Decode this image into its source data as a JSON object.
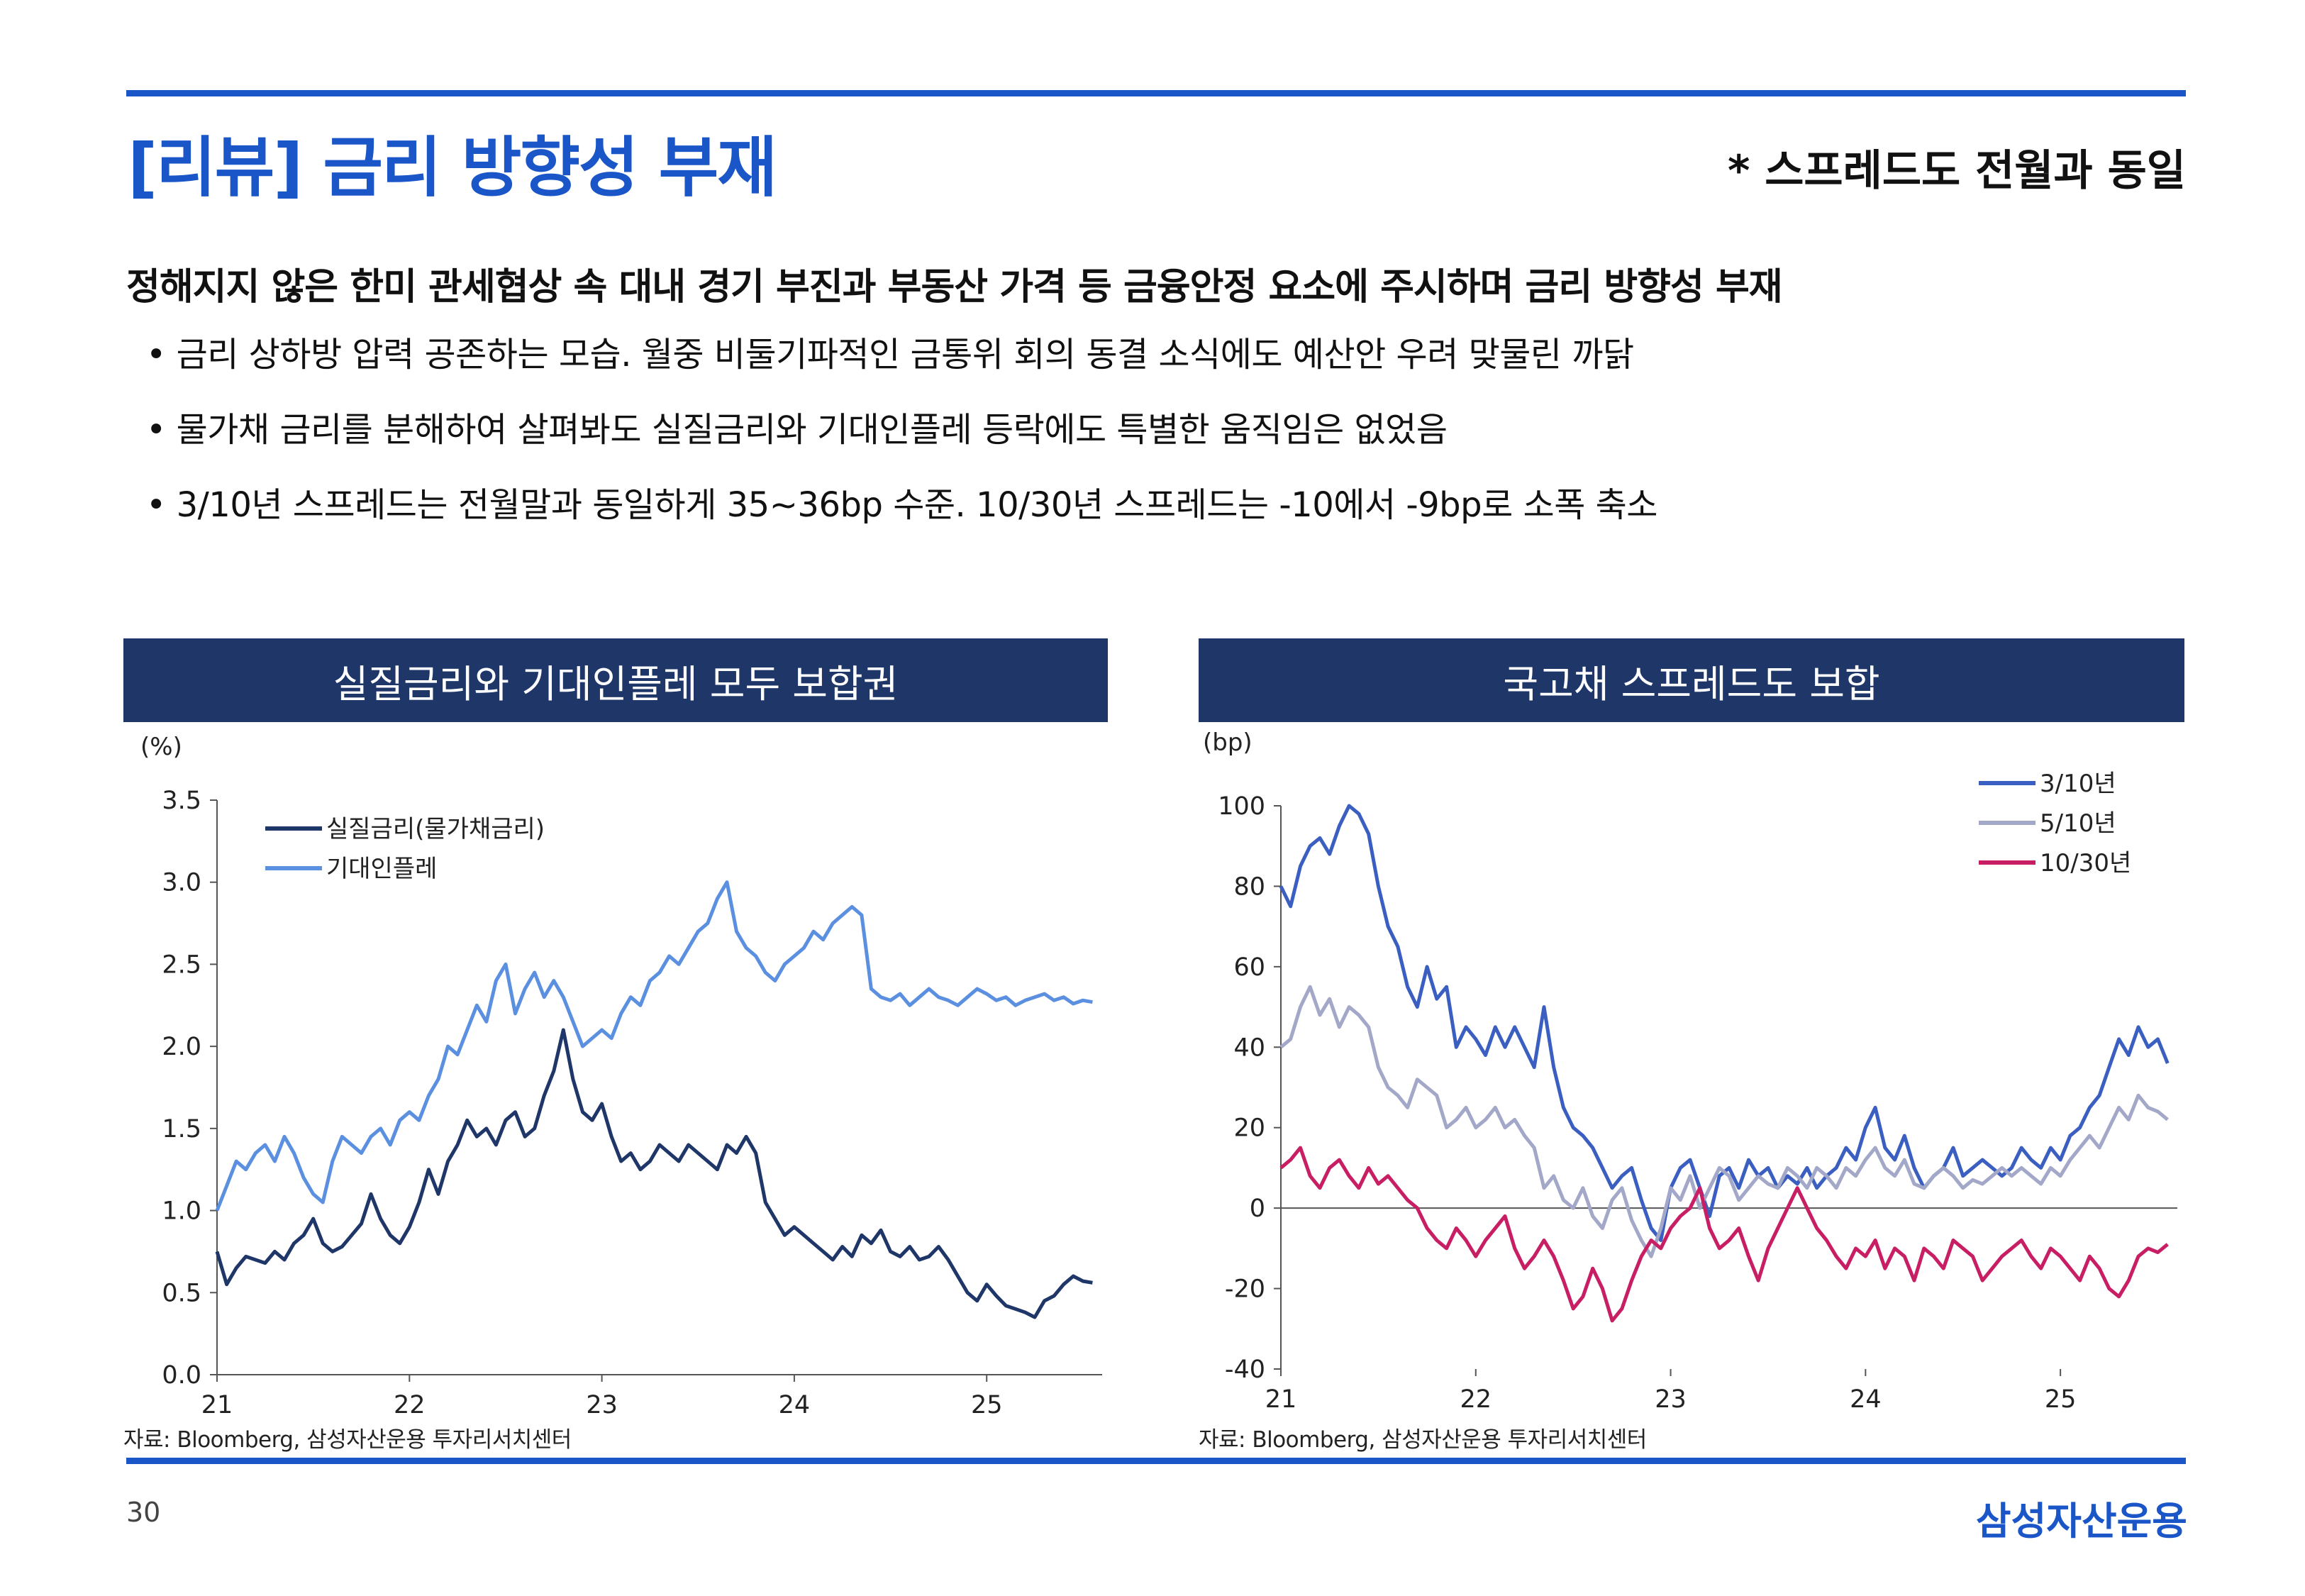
{
  "header": {
    "title": "[리뷰] 금리 방향성 부재",
    "subtitle": "* 스프레드도 전월과 동일"
  },
  "summary": {
    "headline": "정해지지 않은 한미 관세협상 속 대내 경기 부진과 부동산 가격 등 금융안정 요소에 주시하며 금리 방향성 부재",
    "bullets": [
      "금리 상하방 압력 공존하는 모습. 월중 비둘기파적인 금통위 회의 동결 소식에도 예산안 우려 맞물린 까닭",
      "물가채 금리를 분해하여 살펴봐도 실질금리와 기대인플레 등락에도 특별한 움직임은 없었음",
      "3/10년 스프레드는 전월말과 동일하게 35~36bp 수준. 10/30년 스프레드는 -10에서 -9bp로 소폭 축소"
    ]
  },
  "footer": {
    "page": "30",
    "logo": "삼성자산운용"
  },
  "colors": {
    "accent": "#1a56c8",
    "panel_header": "#1f3668",
    "real_rate": "#1f3668",
    "breakeven": "#5b8fe0",
    "s3_10": "#3b5fc0",
    "s5_10": "#a3a8c8",
    "s10_30": "#c81e64"
  },
  "chart_data": [
    {
      "type": "line",
      "title": "실질금리와 기대인플레 모두 보합권",
      "unit_label": "(%)",
      "source": "자료: Bloomberg, 삼성자산운용 투자리서치센터",
      "x_ticks": [
        "21",
        "22",
        "23",
        "24",
        "25"
      ],
      "y_ticks": [
        "3.5",
        "3.0",
        "2.5",
        "2.0",
        "1.5",
        "1.0",
        "0.5",
        "0.0"
      ],
      "ylim": [
        0,
        3.5
      ],
      "xlim": [
        2021.0,
        2025.6
      ],
      "legend_position": "top-left",
      "grid": false,
      "series": [
        {
          "name": "실질금리(물가채금리)",
          "color_key": "real_rate",
          "x": [
            2021.0,
            2021.05,
            2021.1,
            2021.15,
            2021.2,
            2021.25,
            2021.3,
            2021.35,
            2021.4,
            2021.45,
            2021.5,
            2021.55,
            2021.6,
            2021.65,
            2021.7,
            2021.75,
            2021.8,
            2021.85,
            2021.9,
            2021.95,
            2022.0,
            2022.05,
            2022.1,
            2022.15,
            2022.2,
            2022.25,
            2022.3,
            2022.35,
            2022.4,
            2022.45,
            2022.5,
            2022.55,
            2022.6,
            2022.65,
            2022.7,
            2022.75,
            2022.8,
            2022.85,
            2022.9,
            2022.95,
            2023.0,
            2023.05,
            2023.1,
            2023.15,
            2023.2,
            2023.25,
            2023.3,
            2023.35,
            2023.4,
            2023.45,
            2023.5,
            2023.55,
            2023.6,
            2023.65,
            2023.7,
            2023.75,
            2023.8,
            2023.85,
            2023.9,
            2023.95,
            2024.0,
            2024.05,
            2024.1,
            2024.15,
            2024.2,
            2024.25,
            2024.3,
            2024.35,
            2024.4,
            2024.45,
            2024.5,
            2024.55,
            2024.6,
            2024.65,
            2024.7,
            2024.75,
            2024.8,
            2024.85,
            2024.9,
            2024.95,
            2025.0,
            2025.05,
            2025.1,
            2025.15,
            2025.2,
            2025.25,
            2025.3,
            2025.35,
            2025.4,
            2025.45,
            2025.5,
            2025.55
          ],
          "values": [
            0.75,
            0.55,
            0.65,
            0.72,
            0.7,
            0.68,
            0.75,
            0.7,
            0.8,
            0.85,
            0.95,
            0.8,
            0.75,
            0.78,
            0.85,
            0.92,
            1.1,
            0.95,
            0.85,
            0.8,
            0.9,
            1.05,
            1.25,
            1.1,
            1.3,
            1.4,
            1.55,
            1.45,
            1.5,
            1.4,
            1.55,
            1.6,
            1.45,
            1.5,
            1.7,
            1.85,
            2.1,
            1.8,
            1.6,
            1.55,
            1.65,
            1.45,
            1.3,
            1.35,
            1.25,
            1.3,
            1.4,
            1.35,
            1.3,
            1.4,
            1.35,
            1.3,
            1.25,
            1.4,
            1.35,
            1.45,
            1.35,
            1.05,
            0.95,
            0.85,
            0.9,
            0.85,
            0.8,
            0.75,
            0.7,
            0.78,
            0.72,
            0.85,
            0.8,
            0.88,
            0.75,
            0.72,
            0.78,
            0.7,
            0.72,
            0.78,
            0.7,
            0.6,
            0.5,
            0.45,
            0.55,
            0.48,
            0.42,
            0.4,
            0.38,
            0.35,
            0.45,
            0.48,
            0.55,
            0.6,
            0.57,
            0.56
          ]
        },
        {
          "name": "기대인플레",
          "color_key": "breakeven",
          "x": [
            2021.0,
            2021.05,
            2021.1,
            2021.15,
            2021.2,
            2021.25,
            2021.3,
            2021.35,
            2021.4,
            2021.45,
            2021.5,
            2021.55,
            2021.6,
            2021.65,
            2021.7,
            2021.75,
            2021.8,
            2021.85,
            2021.9,
            2021.95,
            2022.0,
            2022.05,
            2022.1,
            2022.15,
            2022.2,
            2022.25,
            2022.3,
            2022.35,
            2022.4,
            2022.45,
            2022.5,
            2022.55,
            2022.6,
            2022.65,
            2022.7,
            2022.75,
            2022.8,
            2022.85,
            2022.9,
            2022.95,
            2023.0,
            2023.05,
            2023.1,
            2023.15,
            2023.2,
            2023.25,
            2023.3,
            2023.35,
            2023.4,
            2023.45,
            2023.5,
            2023.55,
            2023.6,
            2023.65,
            2023.7,
            2023.75,
            2023.8,
            2023.85,
            2023.9,
            2023.95,
            2024.0,
            2024.05,
            2024.1,
            2024.15,
            2024.2,
            2024.25,
            2024.3,
            2024.35,
            2024.4,
            2024.45,
            2024.5,
            2024.55,
            2024.6,
            2024.65,
            2024.7,
            2024.75,
            2024.8,
            2024.85,
            2024.9,
            2024.95,
            2025.0,
            2025.05,
            2025.1,
            2025.15,
            2025.2,
            2025.25,
            2025.3,
            2025.35,
            2025.4,
            2025.45,
            2025.5,
            2025.55
          ],
          "values": [
            1.0,
            1.15,
            1.3,
            1.25,
            1.35,
            1.4,
            1.3,
            1.45,
            1.35,
            1.2,
            1.1,
            1.05,
            1.3,
            1.45,
            1.4,
            1.35,
            1.45,
            1.5,
            1.4,
            1.55,
            1.6,
            1.55,
            1.7,
            1.8,
            2.0,
            1.95,
            2.1,
            2.25,
            2.15,
            2.4,
            2.5,
            2.2,
            2.35,
            2.45,
            2.3,
            2.4,
            2.3,
            2.15,
            2.0,
            2.05,
            2.1,
            2.05,
            2.2,
            2.3,
            2.25,
            2.4,
            2.45,
            2.55,
            2.5,
            2.6,
            2.7,
            2.75,
            2.9,
            3.0,
            2.7,
            2.6,
            2.55,
            2.45,
            2.4,
            2.5,
            2.55,
            2.6,
            2.7,
            2.65,
            2.75,
            2.8,
            2.85,
            2.8,
            2.35,
            2.3,
            2.28,
            2.32,
            2.25,
            2.3,
            2.35,
            2.3,
            2.28,
            2.25,
            2.3,
            2.35,
            2.32,
            2.28,
            2.3,
            2.25,
            2.28,
            2.3,
            2.32,
            2.28,
            2.3,
            2.26,
            2.28,
            2.27
          ]
        }
      ]
    },
    {
      "type": "line",
      "title": "국고채 스프레드도 보합",
      "unit_label": "(bp)",
      "source": "자료: Bloomberg, 삼성자산운용 투자리서치센터",
      "x_ticks": [
        "21",
        "22",
        "23",
        "24",
        "25"
      ],
      "y_ticks": [
        "100",
        "80",
        "60",
        "40",
        "20",
        "0",
        "-20",
        "-40"
      ],
      "ylim": [
        -40,
        100
      ],
      "xlim": [
        2021.0,
        2025.6
      ],
      "legend_position": "top-right",
      "grid": false,
      "series": [
        {
          "name": "3/10년",
          "color_key": "s3_10",
          "x": [
            2021.0,
            2021.05,
            2021.1,
            2021.15,
            2021.2,
            2021.25,
            2021.3,
            2021.35,
            2021.4,
            2021.45,
            2021.5,
            2021.55,
            2021.6,
            2021.65,
            2021.7,
            2021.75,
            2021.8,
            2021.85,
            2021.9,
            2021.95,
            2022.0,
            2022.05,
            2022.1,
            2022.15,
            2022.2,
            2022.25,
            2022.3,
            2022.35,
            2022.4,
            2022.45,
            2022.5,
            2022.55,
            2022.6,
            2022.65,
            2022.7,
            2022.75,
            2022.8,
            2022.85,
            2022.9,
            2022.95,
            2023.0,
            2023.05,
            2023.1,
            2023.15,
            2023.2,
            2023.25,
            2023.3,
            2023.35,
            2023.4,
            2023.45,
            2023.5,
            2023.55,
            2023.6,
            2023.65,
            2023.7,
            2023.75,
            2023.8,
            2023.85,
            2023.9,
            2023.95,
            2024.0,
            2024.05,
            2024.1,
            2024.15,
            2024.2,
            2024.25,
            2024.3,
            2024.35,
            2024.4,
            2024.45,
            2024.5,
            2024.55,
            2024.6,
            2024.65,
            2024.7,
            2024.75,
            2024.8,
            2024.85,
            2024.9,
            2024.95,
            2025.0,
            2025.05,
            2025.1,
            2025.15,
            2025.2,
            2025.25,
            2025.3,
            2025.35,
            2025.4,
            2025.45,
            2025.5,
            2025.55
          ],
          "values": [
            80,
            75,
            85,
            90,
            92,
            88,
            95,
            100,
            98,
            93,
            80,
            70,
            65,
            55,
            50,
            60,
            52,
            55,
            40,
            45,
            42,
            38,
            45,
            40,
            45,
            40,
            35,
            50,
            35,
            25,
            20,
            18,
            15,
            10,
            5,
            8,
            10,
            2,
            -5,
            -8,
            5,
            10,
            12,
            5,
            -2,
            8,
            10,
            5,
            12,
            8,
            10,
            5,
            8,
            6,
            10,
            5,
            8,
            10,
            15,
            12,
            20,
            25,
            15,
            12,
            18,
            10,
            5,
            8,
            10,
            15,
            8,
            10,
            12,
            10,
            8,
            10,
            15,
            12,
            10,
            15,
            12,
            18,
            20,
            25,
            28,
            35,
            42,
            38,
            45,
            40,
            42,
            36
          ]
        },
        {
          "name": "5/10년",
          "color_key": "s5_10",
          "x": [
            2021.0,
            2021.05,
            2021.1,
            2021.15,
            2021.2,
            2021.25,
            2021.3,
            2021.35,
            2021.4,
            2021.45,
            2021.5,
            2021.55,
            2021.6,
            2021.65,
            2021.7,
            2021.75,
            2021.8,
            2021.85,
            2021.9,
            2021.95,
            2022.0,
            2022.05,
            2022.1,
            2022.15,
            2022.2,
            2022.25,
            2022.3,
            2022.35,
            2022.4,
            2022.45,
            2022.5,
            2022.55,
            2022.6,
            2022.65,
            2022.7,
            2022.75,
            2022.8,
            2022.85,
            2022.9,
            2022.95,
            2023.0,
            2023.05,
            2023.1,
            2023.15,
            2023.2,
            2023.25,
            2023.3,
            2023.35,
            2023.4,
            2023.45,
            2023.5,
            2023.55,
            2023.6,
            2023.65,
            2023.7,
            2023.75,
            2023.8,
            2023.85,
            2023.9,
            2023.95,
            2024.0,
            2024.05,
            2024.1,
            2024.15,
            2024.2,
            2024.25,
            2024.3,
            2024.35,
            2024.4,
            2024.45,
            2024.5,
            2024.55,
            2024.6,
            2024.65,
            2024.7,
            2024.75,
            2024.8,
            2024.85,
            2024.9,
            2024.95,
            2025.0,
            2025.05,
            2025.1,
            2025.15,
            2025.2,
            2025.25,
            2025.3,
            2025.35,
            2025.4,
            2025.45,
            2025.5,
            2025.55
          ],
          "values": [
            40,
            42,
            50,
            55,
            48,
            52,
            45,
            50,
            48,
            45,
            35,
            30,
            28,
            25,
            32,
            30,
            28,
            20,
            22,
            25,
            20,
            22,
            25,
            20,
            22,
            18,
            15,
            5,
            8,
            2,
            0,
            5,
            -2,
            -5,
            2,
            5,
            -3,
            -8,
            -12,
            -5,
            5,
            2,
            8,
            0,
            5,
            10,
            8,
            2,
            5,
            8,
            6,
            5,
            10,
            8,
            5,
            10,
            8,
            5,
            10,
            8,
            12,
            15,
            10,
            8,
            12,
            6,
            5,
            8,
            10,
            8,
            5,
            7,
            6,
            8,
            10,
            8,
            10,
            8,
            6,
            10,
            8,
            12,
            15,
            18,
            15,
            20,
            25,
            22,
            28,
            25,
            24,
            22
          ]
        },
        {
          "name": "10/30년",
          "color_key": "s10_30",
          "x": [
            2021.0,
            2021.05,
            2021.1,
            2021.15,
            2021.2,
            2021.25,
            2021.3,
            2021.35,
            2021.4,
            2021.45,
            2021.5,
            2021.55,
            2021.6,
            2021.65,
            2021.7,
            2021.75,
            2021.8,
            2021.85,
            2021.9,
            2021.95,
            2022.0,
            2022.05,
            2022.1,
            2022.15,
            2022.2,
            2022.25,
            2022.3,
            2022.35,
            2022.4,
            2022.45,
            2022.5,
            2022.55,
            2022.6,
            2022.65,
            2022.7,
            2022.75,
            2022.8,
            2022.85,
            2022.9,
            2022.95,
            2023.0,
            2023.05,
            2023.1,
            2023.15,
            2023.2,
            2023.25,
            2023.3,
            2023.35,
            2023.4,
            2023.45,
            2023.5,
            2023.55,
            2023.6,
            2023.65,
            2023.7,
            2023.75,
            2023.8,
            2023.85,
            2023.9,
            2023.95,
            2024.0,
            2024.05,
            2024.1,
            2024.15,
            2024.2,
            2024.25,
            2024.3,
            2024.35,
            2024.4,
            2024.45,
            2024.5,
            2024.55,
            2024.6,
            2024.65,
            2024.7,
            2024.75,
            2024.8,
            2024.85,
            2024.9,
            2024.95,
            2025.0,
            2025.05,
            2025.1,
            2025.15,
            2025.2,
            2025.25,
            2025.3,
            2025.35,
            2025.4,
            2025.45,
            2025.5,
            2025.55
          ],
          "values": [
            10,
            12,
            15,
            8,
            5,
            10,
            12,
            8,
            5,
            10,
            6,
            8,
            5,
            2,
            0,
            -5,
            -8,
            -10,
            -5,
            -8,
            -12,
            -8,
            -5,
            -2,
            -10,
            -15,
            -12,
            -8,
            -12,
            -18,
            -25,
            -22,
            -15,
            -20,
            -28,
            -25,
            -18,
            -12,
            -8,
            -10,
            -5,
            -2,
            0,
            5,
            -5,
            -10,
            -8,
            -5,
            -12,
            -18,
            -10,
            -5,
            0,
            5,
            0,
            -5,
            -8,
            -12,
            -15,
            -10,
            -12,
            -8,
            -15,
            -10,
            -12,
            -18,
            -10,
            -12,
            -15,
            -8,
            -10,
            -12,
            -18,
            -15,
            -12,
            -10,
            -8,
            -12,
            -15,
            -10,
            -12,
            -15,
            -18,
            -12,
            -15,
            -20,
            -22,
            -18,
            -12,
            -10,
            -11,
            -9
          ]
        }
      ]
    }
  ]
}
